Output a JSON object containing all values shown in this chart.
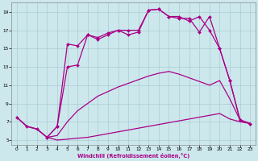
{
  "xlabel": "Windchill (Refroidissement éolien,°C)",
  "bg_color": "#cce8ec",
  "grid_color": "#aaccd4",
  "line_color": "#aa0088",
  "xlim": [
    -0.5,
    23.5
  ],
  "ylim": [
    4.5,
    20.0
  ],
  "xticks": [
    0,
    1,
    2,
    3,
    4,
    5,
    6,
    7,
    8,
    9,
    10,
    11,
    12,
    13,
    14,
    15,
    16,
    17,
    18,
    19,
    20,
    21,
    22,
    23
  ],
  "yticks": [
    5,
    7,
    9,
    11,
    13,
    15,
    17,
    19
  ],
  "line1_x": [
    0,
    1,
    2,
    3,
    4,
    5,
    6,
    7,
    8,
    9,
    10,
    11,
    12,
    13,
    14,
    15,
    16,
    17,
    18,
    19,
    20,
    21,
    22,
    23
  ],
  "line1_y": [
    7.5,
    6.5,
    6.2,
    5.3,
    5.0,
    5.1,
    5.2,
    5.3,
    5.5,
    5.7,
    5.9,
    6.1,
    6.3,
    6.5,
    6.7,
    6.9,
    7.1,
    7.3,
    7.5,
    7.7,
    7.9,
    7.3,
    7.0,
    6.8
  ],
  "line2_x": [
    0,
    1,
    2,
    3,
    4,
    5,
    6,
    7,
    8,
    9,
    10,
    11,
    12,
    13,
    14,
    15,
    16,
    17,
    18,
    19,
    20,
    21,
    22,
    23
  ],
  "line2_y": [
    7.5,
    6.5,
    6.2,
    5.3,
    5.5,
    7.0,
    8.2,
    9.0,
    9.8,
    10.3,
    10.8,
    11.2,
    11.6,
    12.0,
    12.3,
    12.5,
    12.2,
    11.8,
    11.4,
    11.0,
    11.5,
    9.5,
    7.2,
    6.8
  ],
  "line3_x": [
    0,
    1,
    2,
    3,
    4,
    5,
    6,
    7,
    8,
    9,
    10,
    11,
    12,
    13,
    14,
    15,
    16,
    17,
    18,
    19,
    20,
    21,
    22,
    23
  ],
  "line3_y": [
    7.5,
    6.5,
    6.2,
    5.3,
    6.5,
    13.0,
    13.2,
    16.5,
    16.2,
    16.7,
    17.0,
    17.0,
    17.0,
    19.2,
    19.3,
    18.5,
    18.3,
    18.3,
    16.8,
    18.5,
    15.0,
    11.5,
    7.2,
    6.8
  ],
  "line4_x": [
    3,
    4,
    5,
    6,
    7,
    8,
    9,
    10,
    11,
    12,
    13,
    14,
    15,
    16,
    17,
    18,
    19,
    20,
    21,
    22,
    23
  ],
  "line4_y": [
    5.3,
    6.5,
    15.5,
    15.3,
    16.5,
    16.0,
    16.5,
    17.0,
    16.5,
    16.8,
    19.2,
    19.3,
    18.5,
    18.5,
    18.0,
    18.5,
    17.0,
    15.0,
    11.5,
    7.2,
    6.8
  ]
}
